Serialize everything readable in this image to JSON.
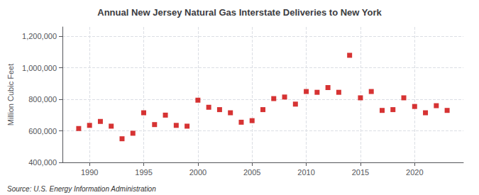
{
  "chart_data": {
    "type": "scatter",
    "title": "Annual New Jersey Natural Gas Interstate Deliveries to New York",
    "ylabel": "Million Cubic Feet",
    "source": "Source: U.S. Energy Information Administration",
    "color": "#cc0000",
    "marker": "square",
    "grid": true,
    "x": [
      1989,
      1990,
      1991,
      1992,
      1993,
      1994,
      1995,
      1996,
      1997,
      1998,
      1999,
      2000,
      2001,
      2002,
      2003,
      2004,
      2005,
      2006,
      2007,
      2008,
      2009,
      2010,
      2011,
      2012,
      2013,
      2014,
      2015,
      2016,
      2017,
      2018,
      2019,
      2020,
      2021,
      2022,
      2023
    ],
    "values": [
      615000,
      635000,
      660000,
      630000,
      550000,
      585000,
      715000,
      640000,
      700000,
      635000,
      630000,
      795000,
      750000,
      735000,
      715000,
      655000,
      665000,
      735000,
      805000,
      815000,
      770000,
      850000,
      845000,
      875000,
      845000,
      1080000,
      810000,
      850000,
      730000,
      735000,
      810000,
      755000,
      715000,
      760000,
      730000
    ],
    "xlim": [
      1987.5,
      2024.5
    ],
    "xticks": [
      1990,
      1995,
      2000,
      2005,
      2010,
      2015,
      2020
    ],
    "ylim": [
      400000,
      1260000
    ],
    "yticks": [
      {
        "value": 400000,
        "label": "400,000"
      },
      {
        "value": 600000,
        "label": "600,000"
      },
      {
        "value": 800000,
        "label": "800,000"
      },
      {
        "value": 1000000,
        "label": "1,000,000"
      },
      {
        "value": 1200000,
        "label": "1,200,000"
      }
    ]
  }
}
